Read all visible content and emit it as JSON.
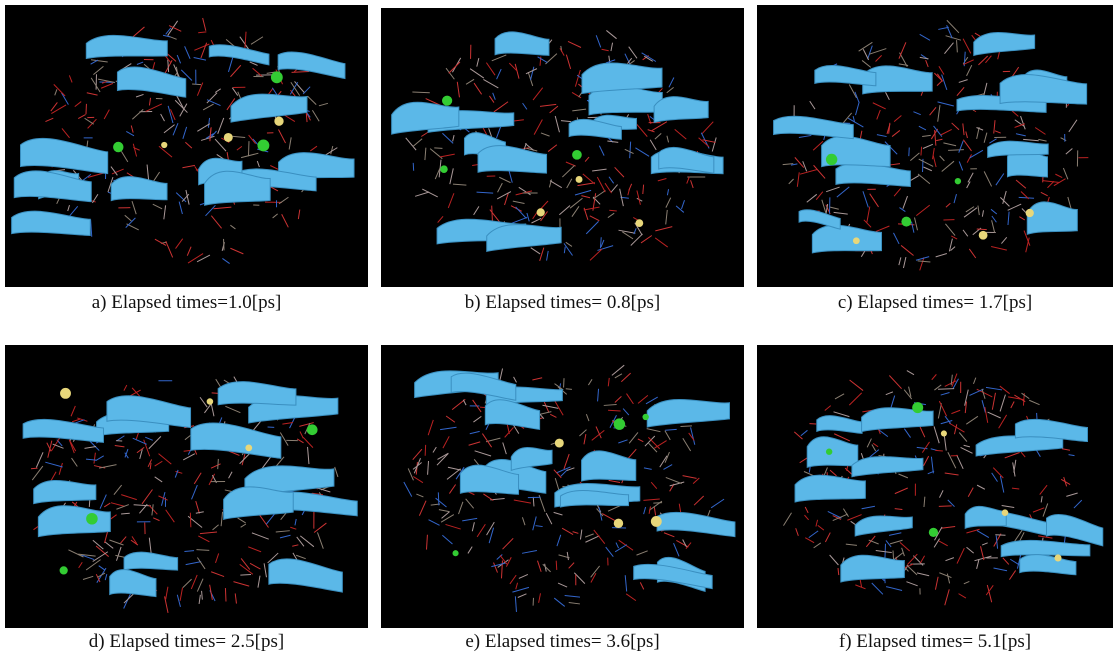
{
  "panels": [
    {
      "caption": "a) Elapsed times=1.0[ps]"
    },
    {
      "caption": "b) Elapsed times= 0.8[ps]"
    },
    {
      "caption": "c) Elapsed times= 1.7[ps]"
    },
    {
      "caption": "d) Elapsed times= 2.5[ps]"
    },
    {
      "caption": "e) Elapsed times= 3.6[ps]"
    },
    {
      "caption": "f) Elapsed times= 5.1[ps]"
    }
  ]
}
